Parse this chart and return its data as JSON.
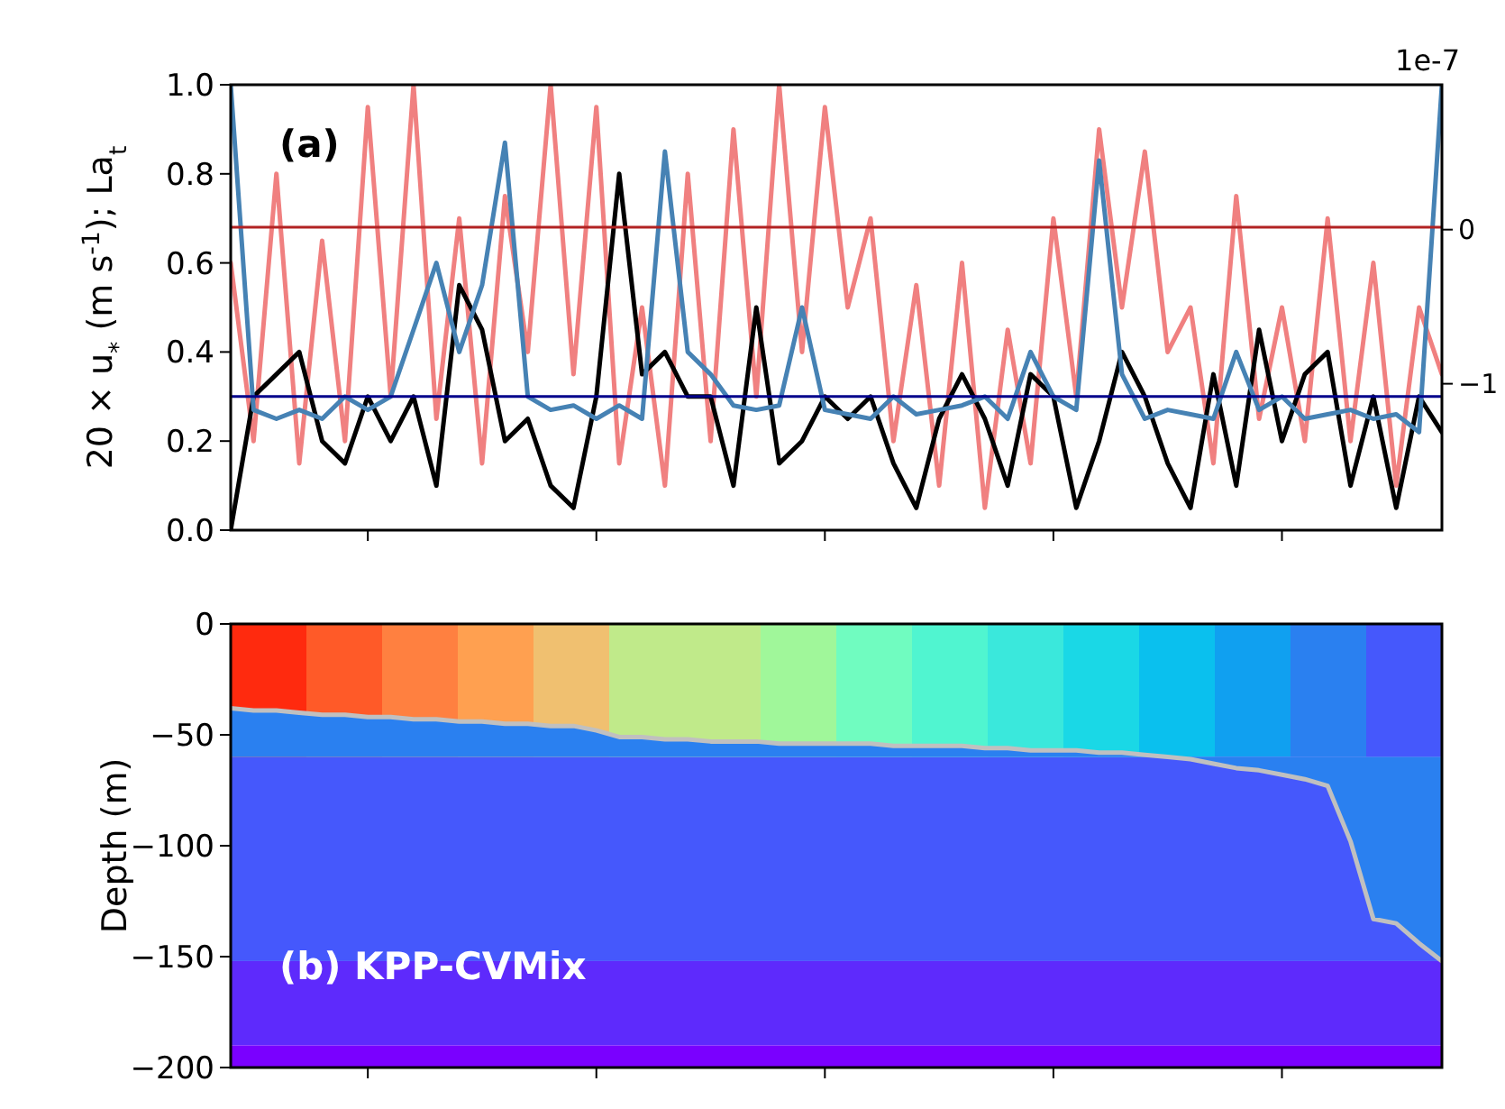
{
  "chart_data": [
    {
      "type": "line",
      "ylabel": "20 × u$_{*}$ (m s$^{-1}$); La$_{t}$",
      "annotations": [
        "(a)",
        "1e-7"
      ],
      "categories": [
        null,
        null,
        null,
        null,
        null,
        null,
        null,
        null,
        null,
        null,
        null,
        null,
        null,
        null,
        null,
        null,
        null,
        null,
        null,
        null,
        null,
        null,
        null,
        null,
        null,
        null,
        null,
        null,
        null,
        null,
        null,
        null,
        null,
        null,
        null,
        null,
        null,
        null,
        null,
        null,
        null,
        null,
        null,
        null,
        null,
        null,
        null,
        null,
        null,
        null,
        null,
        null,
        null,
        null
      ],
      "series": [
        {
          "color": "#f08080",
          "values": [
            0.6,
            0.2,
            0.8,
            0.15,
            0.65,
            0.2,
            0.95,
            0.3,
            1.0,
            0.25,
            0.7,
            0.15,
            0.75,
            0.4,
            1.0,
            0.35,
            0.95,
            0.15,
            0.5,
            0.1,
            0.8,
            0.2,
            0.9,
            0.3,
            1.0,
            0.4,
            0.95,
            0.5,
            0.7,
            0.2,
            0.55,
            0.1,
            0.6,
            0.05,
            0.45,
            0.15,
            0.7,
            0.3,
            0.9,
            0.5,
            0.85,
            0.4,
            0.5,
            0.15,
            0.75,
            0.25,
            0.5,
            0.2,
            0.7,
            0.2,
            0.6,
            0.1,
            0.5,
            0.35
          ]
        },
        {
          "color": "#000000",
          "values": [
            0.0,
            0.3,
            0.35,
            0.4,
            0.2,
            0.15,
            0.3,
            0.2,
            0.3,
            0.1,
            0.55,
            0.45,
            0.2,
            0.25,
            0.1,
            0.05,
            0.3,
            0.8,
            0.35,
            0.4,
            0.3,
            0.3,
            0.1,
            0.5,
            0.15,
            0.2,
            0.3,
            0.25,
            0.3,
            0.15,
            0.05,
            0.25,
            0.35,
            0.25,
            0.1,
            0.35,
            0.3,
            0.05,
            0.2,
            0.4,
            0.3,
            0.15,
            0.05,
            0.35,
            0.1,
            0.45,
            0.2,
            0.35,
            0.4,
            0.1,
            0.3,
            0.05,
            0.3,
            0.22
          ]
        },
        {
          "color": "#4682b4",
          "values": [
            1.0,
            0.27,
            0.25,
            0.27,
            0.25,
            0.3,
            0.27,
            0.3,
            0.45,
            0.6,
            0.4,
            0.55,
            0.87,
            0.3,
            0.27,
            0.28,
            0.25,
            0.28,
            0.25,
            0.85,
            0.4,
            0.35,
            0.28,
            0.27,
            0.28,
            0.5,
            0.27,
            0.26,
            0.25,
            0.3,
            0.26,
            0.27,
            0.28,
            0.3,
            0.25,
            0.4,
            0.3,
            0.27,
            0.83,
            0.35,
            0.25,
            0.27,
            0.26,
            0.25,
            0.4,
            0.27,
            0.3,
            0.25,
            0.26,
            0.27,
            0.25,
            0.26,
            0.22,
            1.0
          ]
        }
      ],
      "ref_lines": [
        {
          "axis": "y",
          "value": 0.68,
          "color": "#b22222"
        },
        {
          "axis": "y",
          "value": 0.3,
          "color": "#00008b"
        }
      ],
      "ylim": [
        0,
        1
      ],
      "yticks": [
        {
          "value": 0,
          "label": "0.0"
        },
        {
          "value": 0.2,
          "label": "0.2"
        },
        {
          "value": 0.4,
          "label": "0.4"
        },
        {
          "value": 0.6,
          "label": "0.6"
        },
        {
          "value": 0.8,
          "label": "0.8"
        },
        {
          "value": 1,
          "label": "1.0"
        }
      ],
      "y2lim": [
        -1.95,
        0.94
      ],
      "y2ticks": [
        {
          "value": -1,
          "label": "−1"
        },
        {
          "value": 0,
          "label": "0"
        }
      ],
      "tick_labels": "y",
      "grid": false
    },
    {
      "type": "line",
      "ylabel": "Depth (m)",
      "annotations": [
        "(b) KPP-CVMix"
      ],
      "categories": [
        null,
        null,
        null,
        null,
        null,
        null,
        null,
        null,
        null,
        null,
        null,
        null,
        null,
        null,
        null,
        null,
        null,
        null,
        null,
        null,
        null,
        null,
        null,
        null,
        null,
        null,
        null,
        null,
        null,
        null,
        null,
        null,
        null,
        null,
        null,
        null,
        null,
        null,
        null,
        null,
        null,
        null,
        null,
        null,
        null,
        null,
        null,
        null,
        null,
        null,
        null,
        null,
        null,
        null
      ],
      "series": [
        {
          "color": "#c0c0c0",
          "values": [
            -38,
            -39,
            -39,
            -40,
            -41,
            -41,
            -42,
            -42,
            -43,
            -43,
            -44,
            -44,
            -45,
            -45,
            -46,
            -46,
            -48,
            -51,
            -51,
            -52,
            -52,
            -53,
            -53,
            -53,
            -54,
            -54,
            -54,
            -54,
            -54,
            -55,
            -55,
            -55,
            -55,
            -56,
            -56,
            -57,
            -57,
            -57,
            -58,
            -58,
            -59,
            -60,
            -61,
            -63,
            -65,
            -66,
            -68,
            -70,
            -73,
            -98,
            -133,
            -135,
            -144,
            -152
          ]
        }
      ],
      "bands": [
        {
          "axis": "y",
          "from": -60,
          "to": 0
        },
        {
          "axis": "y",
          "from": -152,
          "to": -60,
          "color": "#4558fc"
        },
        {
          "axis": "y",
          "from": -190,
          "to": -152,
          "color": "#5e2afc"
        },
        {
          "axis": "y",
          "from": -200,
          "to": -190,
          "color": "#7a00ff"
        }
      ],
      "ylim": [
        -200,
        0
      ],
      "yticks": [
        {
          "value": 0,
          "label": "0"
        },
        {
          "value": -50,
          "label": "−50"
        },
        {
          "value": -100,
          "label": "−100"
        },
        {
          "value": -150,
          "label": "−150"
        },
        {
          "value": -200,
          "label": "−200"
        }
      ],
      "tick_labels": "y",
      "grid": false
    }
  ]
}
